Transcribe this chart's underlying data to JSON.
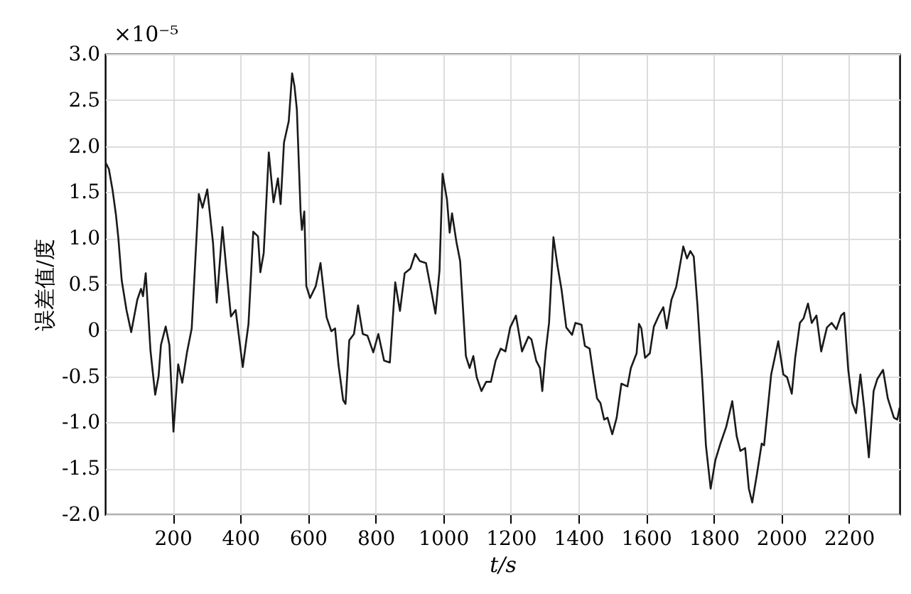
{
  "chart_data": {
    "type": "line",
    "xlabel": "t/s",
    "ylabel": "误差值/度",
    "annotations": [
      "×10⁻⁵"
    ],
    "xlim": [
      0,
      2350
    ],
    "xticks": [
      200,
      400,
      600,
      800,
      1000,
      1200,
      1400,
      1600,
      1800,
      2000,
      2200
    ],
    "ylim": [
      -2,
      3
    ],
    "yticks": [
      {
        "value": -2,
        "label": "-2.0"
      },
      {
        "value": -1.5,
        "label": "-1.5"
      },
      {
        "value": -1,
        "label": "-1.0"
      },
      {
        "value": -0.5,
        "label": "-0.5"
      },
      0,
      {
        "value": 0.5,
        "label": "0.5"
      },
      {
        "value": 1,
        "label": "1.0"
      },
      {
        "value": 1.5,
        "label": "1.5"
      },
      {
        "value": 2,
        "label": "2.0"
      },
      {
        "value": 2.5,
        "label": "2.5"
      },
      {
        "value": 3,
        "label": "3.0"
      }
    ],
    "grid": true,
    "marker": "none",
    "line_style": "solid",
    "series": [
      {
        "color": "#1a1a1a",
        "x": [
          0,
          11,
          22,
          32,
          39,
          49,
          63,
          77,
          95,
          106,
          112,
          120,
          134,
          148,
          158,
          165,
          179,
          190,
          202,
          216,
          228,
          242,
          256,
          277,
          288,
          302,
          319,
          330,
          347,
          358,
          372,
          386,
          407,
          424,
          438,
          452,
          459,
          469,
          484,
          498,
          511,
          519,
          529,
          543,
          553,
          560,
          567,
          578,
          582,
          589,
          595,
          606,
          623,
          637,
          655,
          669,
          680,
          690,
          704,
          711,
          722,
          736,
          748,
          762,
          776,
          793,
          808,
          825,
          842,
          858,
          872,
          886,
          903,
          917,
          931,
          949,
          966,
          977,
          989,
          998,
          1011,
          1019,
          1026,
          1039,
          1050,
          1067,
          1078,
          1089,
          1099,
          1113,
          1127,
          1141,
          1155,
          1170,
          1184,
          1198,
          1215,
          1233,
          1252,
          1261,
          1275,
          1286,
          1293,
          1303,
          1313,
          1326,
          1338,
          1350,
          1364,
          1381,
          1391,
          1409,
          1419,
          1433,
          1444,
          1455,
          1465,
          1476,
          1486,
          1500,
          1513,
          1527,
          1545,
          1555,
          1572,
          1579,
          1586,
          1597,
          1611,
          1623,
          1639,
          1651,
          1661,
          1675,
          1689,
          1710,
          1721,
          1731,
          1741,
          1752,
          1766,
          1777,
          1791,
          1805,
          1820,
          1837,
          1855,
          1868,
          1879,
          1893,
          1904,
          1914,
          1928,
          1942,
          1949,
          1970,
          1991,
          2006,
          2017,
          2031,
          2041,
          2055,
          2066,
          2079,
          2090,
          2104,
          2118,
          2135,
          2149,
          2163,
          2177,
          2186,
          2198,
          2210,
          2221,
          2234,
          2245,
          2259,
          2273,
          2284,
          2301,
          2315,
          2333,
          2343,
          2350
        ],
        "values": [
          1.83,
          1.75,
          1.52,
          1.25,
          1.0,
          0.54,
          0.22,
          -0.02,
          0.33,
          0.45,
          0.37,
          0.62,
          -0.22,
          -0.7,
          -0.5,
          -0.16,
          0.04,
          -0.16,
          -1.1,
          -0.37,
          -0.57,
          -0.24,
          0.02,
          1.48,
          1.33,
          1.53,
          0.95,
          0.3,
          1.12,
          0.68,
          0.15,
          0.22,
          -0.4,
          0.07,
          1.07,
          1.02,
          0.63,
          0.84,
          1.93,
          1.39,
          1.65,
          1.37,
          2.04,
          2.27,
          2.79,
          2.65,
          2.4,
          1.29,
          1.09,
          1.29,
          0.48,
          0.35,
          0.48,
          0.73,
          0.14,
          -0.01,
          0.02,
          -0.37,
          -0.76,
          -0.8,
          -0.11,
          -0.04,
          0.27,
          -0.04,
          -0.06,
          -0.24,
          -0.04,
          -0.33,
          -0.35,
          0.52,
          0.21,
          0.62,
          0.67,
          0.83,
          0.75,
          0.73,
          0.4,
          0.18,
          0.65,
          1.7,
          1.42,
          1.06,
          1.27,
          0.96,
          0.75,
          -0.28,
          -0.41,
          -0.28,
          -0.51,
          -0.66,
          -0.56,
          -0.56,
          -0.33,
          -0.2,
          -0.23,
          0.03,
          0.16,
          -0.23,
          -0.07,
          -0.1,
          -0.33,
          -0.41,
          -0.66,
          -0.23,
          0.08,
          1.01,
          0.7,
          0.44,
          0.03,
          -0.05,
          0.08,
          0.06,
          -0.17,
          -0.2,
          -0.48,
          -0.74,
          -0.79,
          -0.97,
          -0.95,
          -1.13,
          -0.95,
          -0.58,
          -0.61,
          -0.41,
          -0.25,
          0.07,
          0.02,
          -0.3,
          -0.25,
          0.04,
          0.17,
          0.25,
          0.02,
          0.33,
          0.47,
          0.91,
          0.78,
          0.86,
          0.8,
          0.27,
          -0.53,
          -1.25,
          -1.72,
          -1.41,
          -1.23,
          -1.05,
          -0.77,
          -1.15,
          -1.31,
          -1.28,
          -1.72,
          -1.87,
          -1.56,
          -1.23,
          -1.25,
          -0.48,
          -0.12,
          -0.48,
          -0.51,
          -0.69,
          -0.3,
          0.08,
          0.13,
          0.29,
          0.08,
          0.16,
          -0.23,
          0.03,
          0.08,
          0.01,
          0.16,
          0.19,
          -0.43,
          -0.79,
          -0.9,
          -0.48,
          -0.84,
          -1.38,
          -0.66,
          -0.53,
          -0.43,
          -0.74,
          -0.95,
          -0.97,
          -0.84
        ]
      }
    ]
  }
}
